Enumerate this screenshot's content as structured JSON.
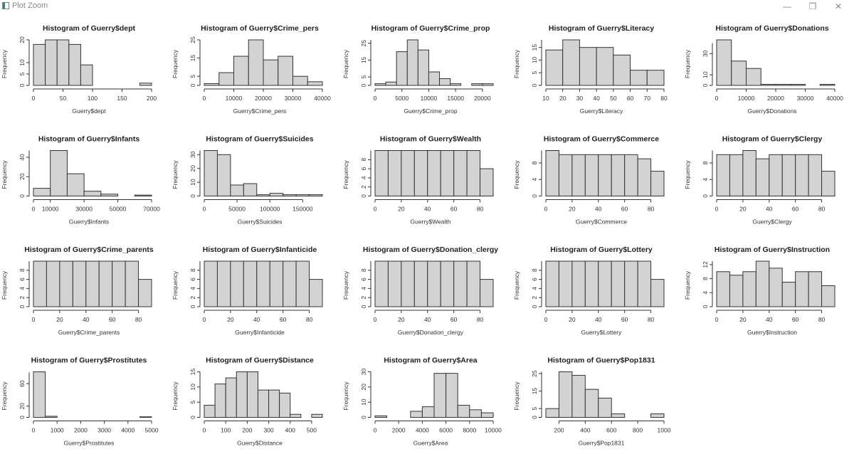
{
  "window": {
    "title": "Plot Zoom",
    "minimize_icon": "minimize-icon",
    "maximize_icon": "restore-icon",
    "close_icon": "close-icon",
    "minimize_glyph": "—",
    "maximize_glyph": "❐",
    "close_glyph": "✕"
  },
  "style": {
    "bar_fill": "#d3d3d3",
    "bar_stroke": "#333333",
    "axis_color": "#333333",
    "text_color": "#333333"
  },
  "chart_data": [
    {
      "type": "bar",
      "title": "Histogram of Guerry$dept",
      "xlabel": "Guerry$dept",
      "ylabel": "Frequency",
      "breaks": [
        0,
        20,
        40,
        60,
        80,
        100,
        120,
        140,
        160,
        180,
        200
      ],
      "values": [
        18,
        20,
        20,
        18,
        9,
        0,
        0,
        0,
        0,
        1
      ],
      "xticks": [
        0,
        50,
        100,
        150,
        200
      ],
      "yticks": [
        0,
        5,
        10,
        20
      ],
      "ylim": [
        0,
        20
      ]
    },
    {
      "type": "bar",
      "title": "Histogram of Guerry$Crime_pers",
      "xlabel": "Guerry$Crime_pers",
      "ylabel": "Frequency",
      "breaks": [
        0,
        5000,
        10000,
        15000,
        20000,
        25000,
        30000,
        35000,
        40000
      ],
      "values": [
        1,
        7,
        16,
        25,
        14,
        16,
        5,
        2
      ],
      "xticks": [
        0,
        10000,
        20000,
        30000,
        40000
      ],
      "yticks": [
        0,
        5,
        15,
        25
      ],
      "ylim": [
        0,
        25
      ]
    },
    {
      "type": "bar",
      "title": "Histogram of Guerry$Crime_prop",
      "xlabel": "Guerry$Crime_prop",
      "ylabel": "Frequency",
      "breaks": [
        0,
        2000,
        4000,
        6000,
        8000,
        10000,
        12000,
        14000,
        16000,
        18000,
        20000,
        22000
      ],
      "values": [
        1,
        2,
        20,
        27,
        21,
        8,
        4,
        1,
        0,
        1,
        1
      ],
      "xticks": [
        0,
        5000,
        10000,
        15000,
        20000
      ],
      "yticks": [
        0,
        5,
        15,
        25
      ],
      "ylim": [
        0,
        27
      ]
    },
    {
      "type": "bar",
      "title": "Histogram of Guerry$Literacy",
      "xlabel": "Guerry$Literacy",
      "ylabel": "Frequency",
      "breaks": [
        10,
        20,
        30,
        40,
        50,
        60,
        70,
        80
      ],
      "values": [
        14,
        18,
        15,
        15,
        12,
        6,
        6
      ],
      "xticks": [
        10,
        20,
        30,
        40,
        50,
        60,
        70,
        80
      ],
      "yticks": [
        0,
        5,
        10,
        15
      ],
      "ylim": [
        0,
        18
      ]
    },
    {
      "type": "bar",
      "title": "Histogram of Guerry$Donations",
      "xlabel": "Guerry$Donations",
      "ylabel": "Frequency",
      "breaks": [
        0,
        5000,
        10000,
        15000,
        20000,
        25000,
        30000,
        35000,
        40000
      ],
      "values": [
        43,
        23,
        16,
        1,
        1,
        1,
        0,
        1
      ],
      "xticks": [
        0,
        10000,
        20000,
        30000,
        40000
      ],
      "yticks": [
        0,
        10,
        30
      ],
      "ylim": [
        0,
        43
      ]
    },
    {
      "type": "bar",
      "title": "Histogram of Guerry$Infants",
      "xlabel": "Guerry$Infants",
      "ylabel": "Frequency",
      "breaks": [
        0,
        10000,
        20000,
        30000,
        40000,
        50000,
        60000,
        70000
      ],
      "values": [
        8,
        47,
        23,
        5,
        2,
        0,
        1
      ],
      "xticks": [
        0,
        10000,
        30000,
        50000,
        70000
      ],
      "yticks": [
        0,
        20,
        40
      ],
      "ylim": [
        0,
        47
      ]
    },
    {
      "type": "bar",
      "title": "Histogram of Guerry$Suicides",
      "xlabel": "Guerry$Suicides",
      "ylabel": "Frequency",
      "breaks": [
        0,
        20000,
        40000,
        60000,
        80000,
        100000,
        120000,
        140000,
        160000,
        180000
      ],
      "values": [
        33,
        30,
        8,
        9,
        1,
        2,
        1,
        1,
        1
      ],
      "xticks": [
        0,
        50000,
        100000,
        150000
      ],
      "yticks": [
        0,
        10,
        20,
        30
      ],
      "ylim": [
        0,
        33
      ]
    },
    {
      "type": "bar",
      "title": "Histogram of Guerry$Wealth",
      "xlabel": "Guerry$Wealth",
      "ylabel": "Frequency",
      "breaks": [
        0,
        10,
        20,
        30,
        40,
        50,
        60,
        70,
        80,
        90
      ],
      "values": [
        10,
        10,
        10,
        10,
        10,
        10,
        10,
        10,
        6
      ],
      "xticks": [
        0,
        20,
        40,
        60,
        80
      ],
      "yticks": [
        0,
        2,
        4,
        6,
        8
      ],
      "ylim": [
        0,
        10
      ]
    },
    {
      "type": "bar",
      "title": "Histogram of Guerry$Commerce",
      "xlabel": "Guerry$Commerce",
      "ylabel": "Frequency",
      "breaks": [
        0,
        10,
        20,
        30,
        40,
        50,
        60,
        70,
        80,
        90
      ],
      "values": [
        11,
        10,
        10,
        10,
        10,
        10,
        10,
        9,
        6
      ],
      "xticks": [
        0,
        20,
        40,
        60,
        80
      ],
      "yticks": [
        0,
        4,
        8
      ],
      "ylim": [
        0,
        11
      ]
    },
    {
      "type": "bar",
      "title": "Histogram of Guerry$Clergy",
      "xlabel": "Guerry$Clergy",
      "ylabel": "Frequency",
      "breaks": [
        0,
        10,
        20,
        30,
        40,
        50,
        60,
        70,
        80,
        90
      ],
      "values": [
        10,
        10,
        11,
        9,
        10,
        10,
        10,
        10,
        6
      ],
      "xticks": [
        0,
        20,
        40,
        60,
        80
      ],
      "yticks": [
        0,
        4,
        8
      ],
      "ylim": [
        0,
        11
      ]
    },
    {
      "type": "bar",
      "title": "Histogram of Guerry$Crime_parents",
      "xlabel": "Guerry$Crime_parents",
      "ylabel": "Frequency",
      "breaks": [
        0,
        10,
        20,
        30,
        40,
        50,
        60,
        70,
        80,
        90
      ],
      "values": [
        10,
        10,
        10,
        10,
        10,
        10,
        10,
        10,
        6
      ],
      "xticks": [
        0,
        20,
        40,
        60,
        80
      ],
      "yticks": [
        0,
        2,
        4,
        6,
        8
      ],
      "ylim": [
        0,
        10
      ]
    },
    {
      "type": "bar",
      "title": "Histogram of Guerry$Infanticide",
      "xlabel": "Guerry$Infanticide",
      "ylabel": "Frequency",
      "breaks": [
        0,
        10,
        20,
        30,
        40,
        50,
        60,
        70,
        80,
        90
      ],
      "values": [
        10,
        10,
        10,
        10,
        10,
        10,
        10,
        10,
        6
      ],
      "xticks": [
        0,
        20,
        40,
        60,
        80
      ],
      "yticks": [
        0,
        2,
        4,
        6,
        8
      ],
      "ylim": [
        0,
        10
      ]
    },
    {
      "type": "bar",
      "title": "Histogram of Guerry$Donation_clergy",
      "xlabel": "Guerry$Donation_clergy",
      "ylabel": "Frequency",
      "breaks": [
        0,
        10,
        20,
        30,
        40,
        50,
        60,
        70,
        80,
        90
      ],
      "values": [
        10,
        10,
        10,
        10,
        10,
        10,
        10,
        10,
        6
      ],
      "xticks": [
        0,
        20,
        40,
        60,
        80
      ],
      "yticks": [
        0,
        2,
        4,
        6,
        8
      ],
      "ylim": [
        0,
        10
      ]
    },
    {
      "type": "bar",
      "title": "Histogram of Guerry$Lottery",
      "xlabel": "Guerry$Lottery",
      "ylabel": "Frequency",
      "breaks": [
        0,
        10,
        20,
        30,
        40,
        50,
        60,
        70,
        80,
        90
      ],
      "values": [
        10,
        10,
        10,
        10,
        10,
        10,
        10,
        10,
        6
      ],
      "xticks": [
        0,
        20,
        40,
        60,
        80
      ],
      "yticks": [
        0,
        2,
        4,
        6,
        8
      ],
      "ylim": [
        0,
        10
      ]
    },
    {
      "type": "bar",
      "title": "Histogram of Guerry$Instruction",
      "xlabel": "Guerry$Instruction",
      "ylabel": "Frequency",
      "breaks": [
        0,
        10,
        20,
        30,
        40,
        50,
        60,
        70,
        80,
        90
      ],
      "values": [
        10,
        9,
        10,
        13,
        11,
        7,
        10,
        10,
        6
      ],
      "xticks": [
        0,
        20,
        40,
        60,
        80
      ],
      "yticks": [
        0,
        4,
        8,
        12
      ],
      "ylim": [
        0,
        13
      ]
    },
    {
      "type": "bar",
      "title": "Histogram of Guerry$Prostitutes",
      "xlabel": "Guerry$Prostitutes",
      "ylabel": "Frequency",
      "breaks": [
        0,
        500,
        1000,
        1500,
        2000,
        2500,
        3000,
        3500,
        4000,
        4500,
        5000
      ],
      "values": [
        81,
        2,
        0,
        0,
        0,
        0,
        0,
        0,
        0,
        1
      ],
      "xticks": [
        0,
        1000,
        2000,
        3000,
        4000,
        5000
      ],
      "yticks": [
        0,
        20,
        60
      ],
      "ylim": [
        0,
        81
      ]
    },
    {
      "type": "bar",
      "title": "Histogram of Guerry$Distance",
      "xlabel": "Guerry$Distance",
      "ylabel": "Frequency",
      "breaks": [
        0,
        50,
        100,
        150,
        200,
        250,
        300,
        350,
        400,
        450,
        500,
        550
      ],
      "values": [
        4,
        11,
        13,
        15,
        15,
        9,
        9,
        8,
        1,
        0,
        1
      ],
      "xticks": [
        0,
        100,
        200,
        300,
        400,
        500
      ],
      "yticks": [
        0,
        5,
        10,
        15
      ],
      "ylim": [
        0,
        15
      ]
    },
    {
      "type": "bar",
      "title": "Histogram of Guerry$Area",
      "xlabel": "Guerry$Area",
      "ylabel": "Frequency",
      "breaks": [
        0,
        1000,
        2000,
        3000,
        4000,
        5000,
        6000,
        7000,
        8000,
        9000,
        10000
      ],
      "values": [
        1,
        0,
        0,
        4,
        7,
        29,
        29,
        8,
        5,
        3
      ],
      "xticks": [
        0,
        2000,
        4000,
        6000,
        8000,
        10000
      ],
      "yticks": [
        0,
        10,
        20,
        30
      ],
      "ylim": [
        0,
        30
      ]
    },
    {
      "type": "bar",
      "title": "Histogram of Guerry$Pop1831",
      "xlabel": "Guerry$Pop1831",
      "ylabel": "Frequency",
      "breaks": [
        100,
        200,
        300,
        400,
        500,
        600,
        700,
        800,
        900,
        1000
      ],
      "values": [
        5,
        26,
        24,
        16,
        11,
        2,
        0,
        0,
        2
      ],
      "xticks": [
        200,
        400,
        600,
        800,
        1000
      ],
      "yticks": [
        0,
        5,
        15,
        25
      ],
      "ylim": [
        0,
        26
      ]
    }
  ]
}
